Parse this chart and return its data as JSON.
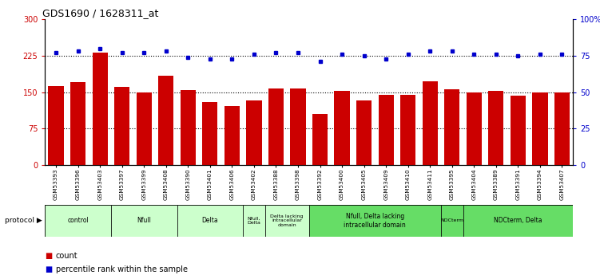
{
  "title": "GDS1690 / 1628311_at",
  "samples": [
    "GSM53393",
    "GSM53396",
    "GSM53403",
    "GSM53397",
    "GSM53399",
    "GSM53408",
    "GSM53390",
    "GSM53401",
    "GSM53406",
    "GSM53402",
    "GSM53388",
    "GSM53398",
    "GSM53392",
    "GSM53400",
    "GSM53405",
    "GSM53409",
    "GSM53410",
    "GSM53411",
    "GSM53395",
    "GSM53404",
    "GSM53389",
    "GSM53391",
    "GSM53394",
    "GSM53407"
  ],
  "counts": [
    163,
    170,
    232,
    160,
    149,
    183,
    155,
    130,
    122,
    133,
    157,
    158,
    105,
    152,
    133,
    145,
    145,
    172,
    156,
    150,
    152,
    142,
    150,
    150
  ],
  "percentiles": [
    77,
    78,
    80,
    77,
    77,
    78,
    74,
    73,
    73,
    76,
    77,
    77,
    71,
    76,
    75,
    73,
    76,
    78,
    78,
    76,
    76,
    75,
    76,
    76
  ],
  "ylim_left": [
    0,
    300
  ],
  "ylim_right": [
    0,
    100
  ],
  "yticks_left": [
    0,
    75,
    150,
    225,
    300
  ],
  "yticks_right": [
    0,
    25,
    50,
    75,
    100
  ],
  "ytick_labels_left": [
    "0",
    "75",
    "150",
    "225",
    "300"
  ],
  "ytick_labels_right": [
    "0",
    "25",
    "50",
    "75",
    "100%"
  ],
  "bar_color": "#cc0000",
  "dot_color": "#0000cc",
  "protocol_groups": [
    {
      "label": "control",
      "start": 0,
      "end": 2,
      "color": "#ccffcc"
    },
    {
      "label": "Nfull",
      "start": 3,
      "end": 5,
      "color": "#ccffcc"
    },
    {
      "label": "Delta",
      "start": 6,
      "end": 8,
      "color": "#ccffcc"
    },
    {
      "label": "Nfull,\nDelta",
      "start": 9,
      "end": 9,
      "color": "#ccffcc"
    },
    {
      "label": "Delta lacking\nintracellular\ndomain",
      "start": 10,
      "end": 11,
      "color": "#ccffcc"
    },
    {
      "label": "Nfull, Delta lacking\nintracellular domain",
      "start": 12,
      "end": 17,
      "color": "#66dd66"
    },
    {
      "label": "NDCterm",
      "start": 18,
      "end": 18,
      "color": "#66dd66"
    },
    {
      "label": "NDCterm, Delta",
      "start": 19,
      "end": 23,
      "color": "#66dd66"
    }
  ],
  "tick_label_color_left": "#cc0000",
  "tick_label_color_right": "#0000cc",
  "legend_count_color": "#cc0000",
  "legend_pct_color": "#0000cc"
}
